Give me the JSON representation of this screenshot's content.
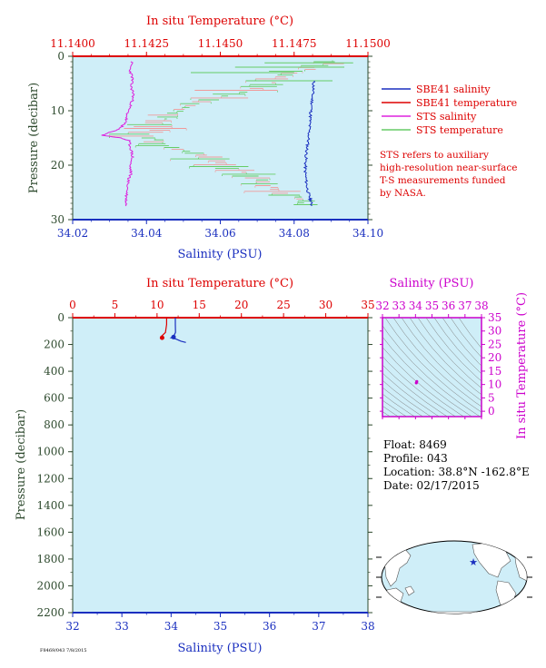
{
  "colors": {
    "panel_bg": "#cfeef8",
    "salinity": "#1a2fbf",
    "temperature": "#dd0000",
    "sts_salinity": "#dd22dd",
    "sts_temperature": "#66cc66",
    "sts_temperature_alt": "#f09a9a",
    "pressure_axis": "#2e4a2e",
    "ts_axis": "#cc00cc"
  },
  "legend": {
    "sbe41_salinity": "SBE41 salinity",
    "sbe41_temperature": "SBE41 temperature",
    "sts_salinity": "STS salinity",
    "sts_temperature": "STS temperature"
  },
  "note": {
    "lines": [
      "STS refers to auxiliary",
      "high-resolution near-surface",
      "T-S measurements funded",
      "by NASA."
    ]
  },
  "float_info": {
    "float": "Float:  8469",
    "profile": "Profile:  043",
    "location": "Location:  38.8°N  -162.8°E",
    "date": "Date:  02/17/2015"
  },
  "footer": {
    "code": "F8469/043 7/8/2015"
  },
  "chart_data": [
    {
      "type": "line",
      "id": "near-surface",
      "title": "In situ Temperature (°C)",
      "xlabel": "Salinity (PSU)",
      "ylabel": "Pressure (decibar)",
      "x_range": [
        34.02,
        34.1
      ],
      "x_ticks": [
        "34.02",
        "34.04",
        "34.06",
        "34.08",
        "34.10"
      ],
      "top_range": [
        11.14,
        11.15
      ],
      "top_ticks": [
        "11.1400",
        "11.1425",
        "11.1450",
        "11.1475",
        "11.1500"
      ],
      "y_range": [
        0,
        30
      ],
      "y_ticks": [
        "0",
        "10",
        "20",
        "30"
      ],
      "series": [
        {
          "name": "SBE41 salinity",
          "points": [
            [
              34.0853,
              4.5
            ],
            [
              34.0852,
              6.0
            ],
            [
              34.0849,
              7.5
            ],
            [
              34.0848,
              9.0
            ],
            [
              34.0845,
              10.5
            ],
            [
              34.0843,
              12.0
            ],
            [
              34.0841,
              13.5
            ],
            [
              34.0839,
              15.0
            ],
            [
              34.0836,
              16.5
            ],
            [
              34.0833,
              18.0
            ],
            [
              34.0831,
              19.5
            ],
            [
              34.083,
              21.0
            ],
            [
              34.0832,
              22.5
            ],
            [
              34.0835,
              24.0
            ],
            [
              34.084,
              25.5
            ],
            [
              34.0845,
              26.5
            ],
            [
              34.0848,
              27.5
            ]
          ]
        },
        {
          "name": "STS salinity",
          "points": [
            [
              34.036,
              1.0
            ],
            [
              34.0355,
              2.5
            ],
            [
              34.0362,
              4.0
            ],
            [
              34.0358,
              5.5
            ],
            [
              34.0365,
              7.0
            ],
            [
              34.036,
              8.5
            ],
            [
              34.035,
              10.0
            ],
            [
              34.0345,
              11.5
            ],
            [
              34.034,
              12.5
            ],
            [
              34.032,
              13.5
            ],
            [
              34.028,
              14.5
            ],
            [
              34.033,
              15.0
            ],
            [
              34.0352,
              15.5
            ],
            [
              34.0358,
              17.0
            ],
            [
              34.0362,
              18.5
            ],
            [
              34.0355,
              20.0
            ],
            [
              34.0358,
              21.5
            ],
            [
              34.035,
              23.0
            ],
            [
              34.0348,
              24.5
            ],
            [
              34.0345,
              26.0
            ],
            [
              34.0345,
              27.5
            ]
          ]
        },
        {
          "name": "STS temperature",
          "points": [
            [
              11.1488,
              1.0
            ],
            [
              11.1475,
              3.0
            ],
            [
              11.1465,
              5.5
            ],
            [
              11.145,
              7.5
            ],
            [
              11.1437,
              9.5
            ],
            [
              11.143,
              12.0
            ],
            [
              11.1425,
              14.5
            ],
            [
              11.1432,
              16.5
            ],
            [
              11.1447,
              18.5
            ],
            [
              11.1455,
              20.5
            ],
            [
              11.1462,
              22.5
            ],
            [
              11.147,
              24.5
            ],
            [
              11.1478,
              26.5
            ]
          ]
        }
      ]
    },
    {
      "type": "line",
      "id": "full-profile",
      "title": "In situ Temperature (°C)",
      "xlabel": "Salinity (PSU)",
      "ylabel": "Pressure (decibar)",
      "x_range": [
        32,
        38
      ],
      "x_ticks": [
        "32",
        "33",
        "34",
        "35",
        "36",
        "37",
        "38"
      ],
      "top_range": [
        0,
        35
      ],
      "top_ticks": [
        "0",
        "5",
        "10",
        "15",
        "20",
        "25",
        "30",
        "35"
      ],
      "y_range": [
        0,
        2200
      ],
      "y_ticks": [
        "0",
        "200",
        "400",
        "600",
        "800",
        "1000",
        "1200",
        "1400",
        "1600",
        "1800",
        "2000",
        "2200"
      ],
      "series": [
        {
          "name": "SBE41 salinity",
          "points": [
            [
              34.086,
              0
            ],
            [
              34.086,
              50
            ],
            [
              34.09,
              110
            ],
            [
              34.05,
              140
            ],
            [
              34.0,
              150
            ],
            [
              34.1,
              160
            ],
            [
              34.2,
              175
            ],
            [
              34.3,
              185
            ]
          ]
        },
        {
          "name": "SBE41 temperature",
          "points": [
            [
              11.14,
              0
            ],
            [
              11.14,
              50
            ],
            [
              11.0,
              110
            ],
            [
              10.5,
              140
            ],
            [
              10.6,
              150
            ]
          ]
        }
      ],
      "markers": [
        {
          "name": "SBE41 salinity",
          "x": 34.05,
          "y": 145
        },
        {
          "name": "SBE41 temperature",
          "x": 10.6,
          "y": 150
        }
      ]
    },
    {
      "type": "scatter",
      "id": "ts-diagram",
      "title": "Salinity (PSU)",
      "ylabel": "In situ Temperature (°C)",
      "x_range": [
        32,
        38
      ],
      "x_ticks": [
        "32",
        "33",
        "34",
        "35",
        "36",
        "37",
        "38"
      ],
      "y_range": [
        -2,
        35
      ],
      "y_ticks": [
        "0",
        "5",
        "10",
        "15",
        "20",
        "25",
        "30",
        "35"
      ],
      "series": [
        {
          "name": "SBE41 T-S",
          "points": [
            [
              34.05,
              10.6
            ],
            [
              34.08,
              11.1
            ]
          ]
        }
      ]
    }
  ],
  "map": {
    "marker": {
      "lat": 38.8,
      "lon": -162.8
    }
  }
}
